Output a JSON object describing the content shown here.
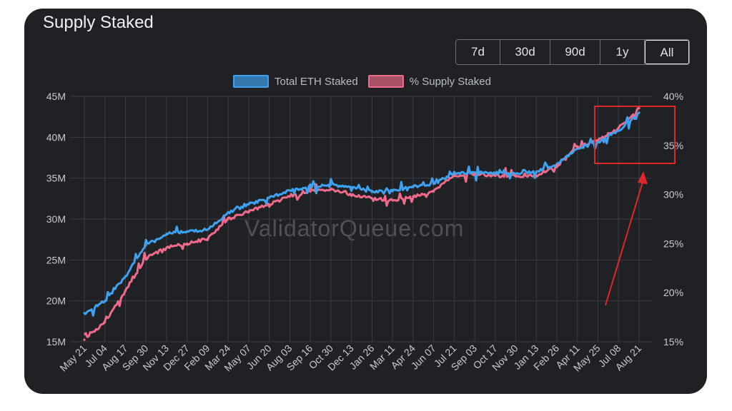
{
  "title": "Supply Staked",
  "watermark": "ValidatorQueue.com",
  "range_buttons": [
    {
      "label": "7d",
      "active": false
    },
    {
      "label": "30d",
      "active": false
    },
    {
      "label": "90d",
      "active": false
    },
    {
      "label": "1y",
      "active": false
    },
    {
      "label": "All",
      "active": true
    }
  ],
  "colors": {
    "background": "#1f2125",
    "grid": "#3a3d43",
    "total_eth": "#3ea2f0",
    "supply_pct": "#f06a8a",
    "annotation": "#e0262a"
  },
  "chart_data": {
    "type": "line",
    "title": "Supply Staked",
    "legend": "top-center",
    "grid": true,
    "categories": [
      "May 21",
      "Jul 04",
      "Aug 17",
      "Sep 30",
      "Nov 13",
      "Dec 27",
      "Feb 09",
      "Mar 24",
      "May 07",
      "Jun 20",
      "Aug 03",
      "Sep 16",
      "Oct 30",
      "Dec 13",
      "Jan 26",
      "Mar 11",
      "Apr 24",
      "Jun 07",
      "Jul 21",
      "Sep 03",
      "Oct 17",
      "Nov 30",
      "Jan 13",
      "Feb 26",
      "Apr 11",
      "May 25",
      "Jul 08",
      "Aug 21"
    ],
    "y_left": {
      "ticks": [
        "15M",
        "20M",
        "25M",
        "30M",
        "35M",
        "40M",
        "45M"
      ],
      "min": 15,
      "max": 45,
      "unit": "M"
    },
    "y_right": {
      "ticks": [
        "15%",
        "20%",
        "25%",
        "30%",
        "35%",
        "40%"
      ],
      "min": 15,
      "max": 40,
      "unit": "%"
    },
    "series": [
      {
        "name": "Total ETH Staked",
        "axis": "left",
        "values": [
          18.5,
          20.0,
          23.0,
          26.8,
          28.2,
          28.5,
          28.7,
          30.8,
          31.8,
          32.6,
          33.5,
          34.0,
          34.2,
          33.9,
          33.3,
          33.4,
          34.0,
          34.3,
          35.6,
          35.7,
          35.6,
          35.5,
          35.8,
          36.7,
          38.6,
          39.4,
          40.8,
          43.0
        ]
      },
      {
        "name": "% Supply Staked",
        "axis": "right",
        "values": [
          15.2,
          17.0,
          20.2,
          23.5,
          24.6,
          25.0,
          25.5,
          27.5,
          28.3,
          29.0,
          29.8,
          30.3,
          30.5,
          30.0,
          29.6,
          29.4,
          29.8,
          30.3,
          31.9,
          32.1,
          31.9,
          31.9,
          31.9,
          33.0,
          34.8,
          35.5,
          36.8,
          38.8
        ]
      }
    ]
  }
}
